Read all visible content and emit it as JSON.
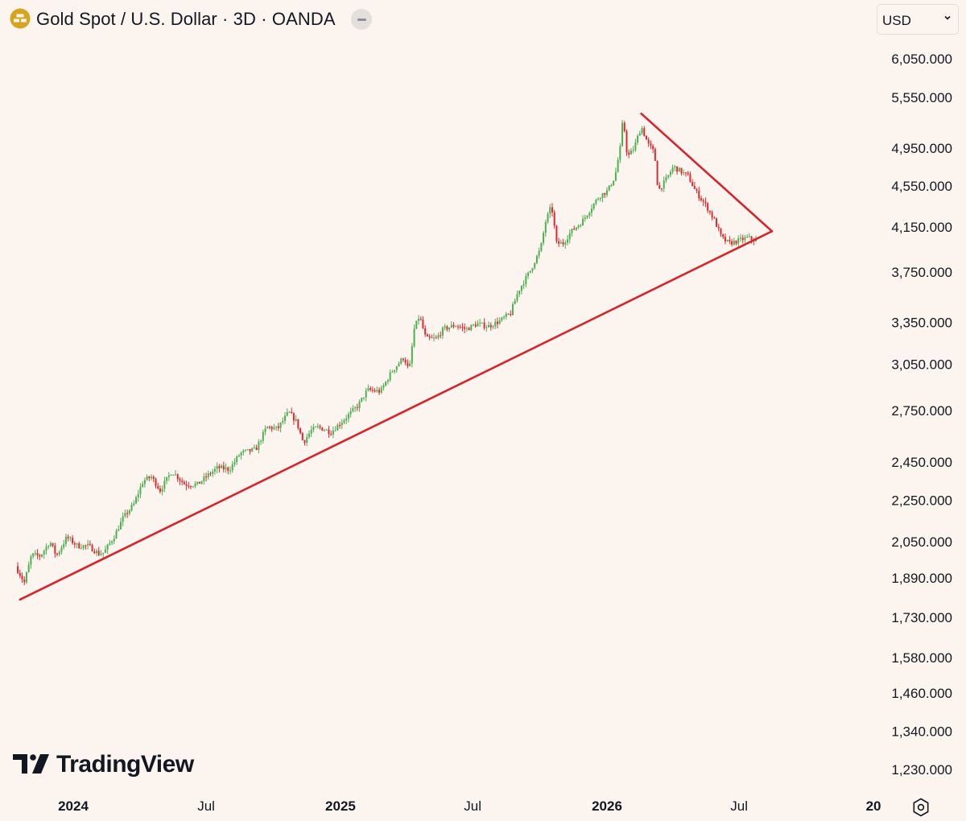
{
  "header": {
    "title": "Gold Spot / U.S. Dollar · 3D · OANDA",
    "symbol_icon": "gold-bars-icon",
    "collapse_icon": "minus-icon",
    "currency": "USD",
    "currency_icon": "chevron-down-icon"
  },
  "branding": {
    "logo_text": "TradingView",
    "logo_icon": "tradingview-logo-icon"
  },
  "footer": {
    "settings_icon": "gear-icon"
  },
  "colors": {
    "background": "#fcf5ef",
    "up": "#4caf50",
    "down": "#e0272f",
    "trendline": "#d8232a",
    "axis_text": "#131722",
    "symbol_icon": "#d8a31f"
  },
  "chart_data": {
    "type": "candlestick",
    "scale": "log",
    "grid": false,
    "y_ticks": [
      "6,050.000",
      "5,550.000",
      "4,950.000",
      "4,550.000",
      "4,150.000",
      "3,750.000",
      "3,350.000",
      "3,050.000",
      "2,750.000",
      "2,450.000",
      "2,250.000",
      "2,050.000",
      "1,890.000",
      "1,730.000",
      "1,580.000",
      "1,460.000",
      "1,340.000",
      "1,230.000"
    ],
    "x_ticks": [
      {
        "label": "2024",
        "date": "2024-01-01",
        "bold": true
      },
      {
        "label": "Jul",
        "date": "2024-07-01",
        "bold": false
      },
      {
        "label": "2025",
        "date": "2025-01-01",
        "bold": true
      },
      {
        "label": "Jul",
        "date": "2025-07-01",
        "bold": false
      },
      {
        "label": "2026",
        "date": "2026-01-01",
        "bold": true
      },
      {
        "label": "Jul",
        "date": "2026-07-01",
        "bold": false
      },
      {
        "label": "20",
        "date": "2027-01-01",
        "bold": true
      }
    ],
    "price_path": [
      [
        "2023-10-17",
        1940
      ],
      [
        "2023-10-29",
        1870
      ],
      [
        "2023-11-08",
        1990
      ],
      [
        "2023-11-20",
        1985
      ],
      [
        "2023-12-03",
        2050
      ],
      [
        "2023-12-12",
        1985
      ],
      [
        "2023-12-26",
        2070
      ],
      [
        "2024-01-10",
        2030
      ],
      [
        "2024-01-25",
        2030
      ],
      [
        "2024-02-08",
        1995
      ],
      [
        "2024-02-15",
        2000
      ],
      [
        "2024-03-01",
        2080
      ],
      [
        "2024-03-12",
        2160
      ],
      [
        "2024-03-27",
        2230
      ],
      [
        "2024-04-09",
        2350
      ],
      [
        "2024-04-20",
        2370
      ],
      [
        "2024-05-02",
        2300
      ],
      [
        "2024-05-18",
        2400
      ],
      [
        "2024-06-05",
        2330
      ],
      [
        "2024-06-22",
        2330
      ],
      [
        "2024-07-10",
        2390
      ],
      [
        "2024-07-20",
        2420
      ],
      [
        "2024-08-05",
        2410
      ],
      [
        "2024-08-20",
        2500
      ],
      [
        "2024-09-10",
        2520
      ],
      [
        "2024-09-25",
        2650
      ],
      [
        "2024-10-10",
        2640
      ],
      [
        "2024-10-25",
        2740
      ],
      [
        "2024-11-05",
        2680
      ],
      [
        "2024-11-14",
        2560
      ],
      [
        "2024-11-25",
        2630
      ],
      [
        "2024-12-05",
        2650
      ],
      [
        "2024-12-22",
        2620
      ],
      [
        "2025-01-10",
        2700
      ],
      [
        "2025-01-28",
        2780
      ],
      [
        "2025-02-10",
        2880
      ],
      [
        "2025-02-28",
        2870
      ],
      [
        "2025-03-15",
        3000
      ],
      [
        "2025-04-01",
        3100
      ],
      [
        "2025-04-08",
        3000
      ],
      [
        "2025-04-15",
        3300
      ],
      [
        "2025-04-22",
        3400
      ],
      [
        "2025-05-01",
        3230
      ],
      [
        "2025-05-15",
        3230
      ],
      [
        "2025-05-25",
        3300
      ],
      [
        "2025-06-10",
        3330
      ],
      [
        "2025-06-25",
        3300
      ],
      [
        "2025-07-10",
        3340
      ],
      [
        "2025-07-25",
        3320
      ],
      [
        "2025-08-10",
        3360
      ],
      [
        "2025-08-25",
        3420
      ],
      [
        "2025-09-05",
        3600
      ],
      [
        "2025-09-20",
        3750
      ],
      [
        "2025-10-05",
        3950
      ],
      [
        "2025-10-12",
        4200
      ],
      [
        "2025-10-20",
        4350
      ],
      [
        "2025-10-27",
        4000
      ],
      [
        "2025-11-05",
        4000
      ],
      [
        "2025-11-15",
        4100
      ],
      [
        "2025-12-01",
        4200
      ],
      [
        "2025-12-15",
        4350
      ],
      [
        "2025-12-25",
        4450
      ],
      [
        "2026-01-05",
        4500
      ],
      [
        "2026-01-15",
        4650
      ],
      [
        "2026-01-22",
        4950
      ],
      [
        "2026-01-26",
        5300
      ],
      [
        "2026-02-01",
        4850
      ],
      [
        "2026-02-10",
        4950
      ],
      [
        "2026-02-20",
        5200
      ],
      [
        "2026-03-01",
        5000
      ],
      [
        "2026-03-10",
        4900
      ],
      [
        "2026-03-15",
        4500
      ],
      [
        "2026-03-25",
        4600
      ],
      [
        "2026-04-05",
        4750
      ],
      [
        "2026-04-15",
        4700
      ],
      [
        "2026-04-25",
        4650
      ],
      [
        "2026-05-05",
        4500
      ],
      [
        "2026-05-20",
        4350
      ],
      [
        "2026-06-01",
        4200
      ],
      [
        "2026-06-10",
        4050
      ],
      [
        "2026-06-20",
        4000
      ],
      [
        "2026-07-01",
        4020
      ],
      [
        "2026-07-15",
        4050
      ],
      [
        "2026-07-25",
        4030
      ]
    ],
    "trendlines": [
      {
        "name": "support",
        "from": [
          "2023-10-20",
          1800
        ],
        "to": [
          "2026-08-15",
          4110
        ]
      },
      {
        "name": "resistance",
        "from": [
          "2026-02-17",
          5350
        ],
        "to": [
          "2026-08-15",
          4110
        ]
      }
    ]
  }
}
